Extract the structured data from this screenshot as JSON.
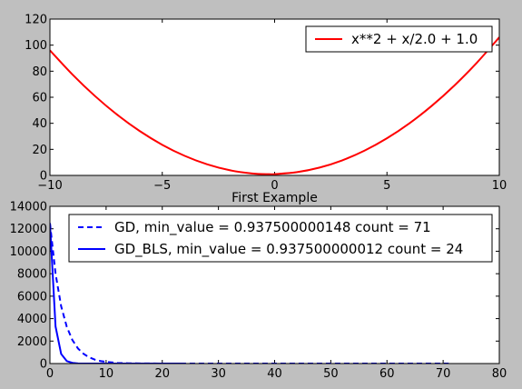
{
  "chart_data": [
    {
      "type": "line",
      "title": "",
      "xlabel": "",
      "ylabel": "",
      "xlim": [
        -10,
        10
      ],
      "ylim": [
        0,
        120
      ],
      "xticks": [
        -10,
        -5,
        0,
        5,
        10
      ],
      "yticks": [
        0,
        20,
        40,
        60,
        80,
        100,
        120
      ],
      "grid": false,
      "legend": {
        "placement": "top-right"
      },
      "series": [
        {
          "name": "x**2 + x/2.0 + 1.0",
          "color": "#ff0000",
          "style": "solid",
          "x": [
            -10,
            -9,
            -8,
            -7,
            -6,
            -5,
            -4,
            -3,
            -2,
            -1,
            -0.25,
            0,
            1,
            2,
            3,
            4,
            5,
            6,
            7,
            8,
            9,
            10
          ],
          "y": [
            96,
            77.5,
            61,
            46.5,
            34,
            23.5,
            15,
            8.5,
            4,
            1.5,
            0.9375,
            1,
            2.5,
            6,
            11.5,
            19,
            28.5,
            40,
            53.5,
            69,
            86.5,
            106
          ]
        }
      ]
    },
    {
      "type": "line",
      "title": "First Example",
      "xlabel": "",
      "ylabel": "",
      "xlim": [
        0,
        80
      ],
      "ylim": [
        0,
        14000
      ],
      "xticks": [
        0,
        10,
        20,
        30,
        40,
        50,
        60,
        70,
        80
      ],
      "yticks": [
        0,
        2000,
        4000,
        6000,
        8000,
        10000,
        12000,
        14000
      ],
      "grid": false,
      "legend": {
        "placement": "top-right"
      },
      "series": [
        {
          "name": "GD, min_value = 0.937500000148 count = 71",
          "color": "#0000ff",
          "style": "dashed",
          "x": [
            0,
            1,
            2,
            3,
            4,
            5,
            6,
            7,
            8,
            9,
            10,
            12,
            14,
            16,
            20,
            25,
            30,
            40,
            50,
            60,
            71
          ],
          "y": [
            12500,
            8000,
            5100,
            3270,
            2090,
            1340,
            860,
            550,
            350,
            225,
            145,
            60,
            25,
            10,
            2,
            1,
            1,
            1,
            1,
            1,
            1
          ]
        },
        {
          "name": "GD_BLS, min_value = 0.937500000012 count = 24",
          "color": "#0000ff",
          "style": "solid",
          "x": [
            0,
            1,
            2,
            3,
            4,
            5,
            6,
            8,
            10,
            15,
            20,
            24
          ],
          "y": [
            12500,
            3300,
            850,
            220,
            60,
            15,
            5,
            1,
            1,
            1,
            1,
            1
          ]
        }
      ]
    }
  ]
}
